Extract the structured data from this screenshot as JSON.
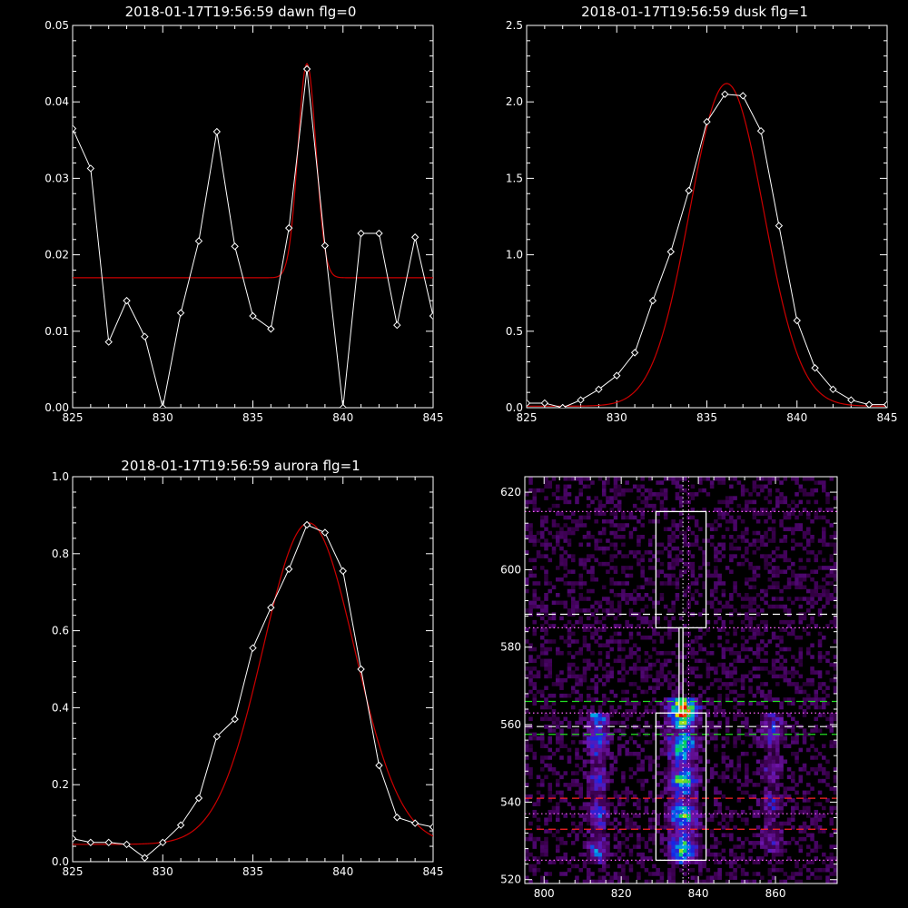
{
  "colors": {
    "background": "#000000",
    "axes": "#ffffff",
    "data_line": "#ffffff",
    "fit_line": "#cc0000"
  },
  "chart_data": [
    {
      "id": "dawn",
      "type": "line",
      "title": "2018-01-17T19:56:59 dawn flg=0",
      "xlim": [
        825,
        845
      ],
      "ylim": [
        0,
        0.05
      ],
      "xticks": [
        825,
        830,
        835,
        840,
        845
      ],
      "xticklabels": [
        "825",
        "830",
        "835",
        "840",
        "845"
      ],
      "yticks": [
        0,
        0.01,
        0.02,
        0.03,
        0.04,
        0.05
      ],
      "yticklabels": [
        "0.00",
        "0.01",
        "0.02",
        "0.03",
        "0.04",
        "0.05"
      ],
      "data": {
        "x": [
          825,
          826,
          827,
          828,
          829,
          830,
          831,
          832,
          833,
          834,
          835,
          836,
          837,
          838,
          839,
          840,
          841,
          842,
          843,
          844,
          845
        ],
        "y": [
          0.0365,
          0.0313,
          0.0086,
          0.014,
          0.0093,
          0.0,
          0.0124,
          0.0218,
          0.0361,
          0.0211,
          0.012,
          0.0103,
          0.0235,
          0.0443,
          0.0212,
          0.0,
          0.0228,
          0.0228,
          0.0108,
          0.0223,
          0.012
        ]
      },
      "fit": {
        "model": "gaussian+constant",
        "amplitude": 0.028,
        "center": 838.0,
        "sigma": 0.5,
        "offset": 0.017
      }
    },
    {
      "id": "dusk",
      "type": "line",
      "title": "2018-01-17T19:56:59 dusk flg=1",
      "xlim": [
        825,
        845
      ],
      "ylim": [
        0,
        2.5
      ],
      "xticks": [
        825,
        830,
        835,
        840,
        845
      ],
      "xticklabels": [
        "825",
        "830",
        "835",
        "840",
        "845"
      ],
      "yticks": [
        0,
        0.5,
        1.0,
        1.5,
        2.0,
        2.5
      ],
      "yticklabels": [
        "0.0",
        "0.5",
        "1.0",
        "1.5",
        "2.0",
        "2.5"
      ],
      "data": {
        "x": [
          825,
          826,
          827,
          828,
          829,
          830,
          831,
          832,
          833,
          834,
          835,
          836,
          837,
          838,
          839,
          840,
          841,
          842,
          843,
          844,
          845
        ],
        "y": [
          0.03,
          0.03,
          0.0,
          0.05,
          0.12,
          0.21,
          0.36,
          0.7,
          1.02,
          1.42,
          1.87,
          2.05,
          2.04,
          1.81,
          1.19,
          0.57,
          0.26,
          0.12,
          0.05,
          0.02,
          0.02
        ]
      },
      "fit": {
        "model": "gaussian+constant",
        "amplitude": 2.11,
        "center": 836.1,
        "sigma": 2.05,
        "offset": 0.01
      }
    },
    {
      "id": "aurora",
      "type": "line",
      "title": "2018-01-17T19:56:59 aurora flg=1",
      "xlim": [
        825,
        845
      ],
      "ylim": [
        0,
        1.0
      ],
      "xticks": [
        825,
        830,
        835,
        840,
        845
      ],
      "xticklabels": [
        "825",
        "830",
        "835",
        "840",
        "845"
      ],
      "yticks": [
        0,
        0.2,
        0.4,
        0.6,
        0.8,
        1.0
      ],
      "yticklabels": [
        "0.0",
        "0.2",
        "0.4",
        "0.6",
        "0.8",
        "1.0"
      ],
      "data": {
        "x": [
          825,
          826,
          827,
          828,
          829,
          830,
          831,
          832,
          833,
          834,
          835,
          836,
          837,
          838,
          839,
          840,
          841,
          842,
          843,
          844,
          845
        ],
        "y": [
          0.06,
          0.05,
          0.05,
          0.045,
          0.01,
          0.05,
          0.095,
          0.165,
          0.325,
          0.37,
          0.555,
          0.66,
          0.76,
          0.875,
          0.855,
          0.755,
          0.5,
          0.25,
          0.115,
          0.1,
          0.09
        ]
      },
      "fit": {
        "model": "gaussian+constant",
        "amplitude": 0.835,
        "center": 838.1,
        "sigma": 2.55,
        "offset": 0.045
      }
    },
    {
      "id": "image",
      "type": "heatmap",
      "xlim": [
        795,
        876
      ],
      "ylim": [
        519,
        624
      ],
      "xticks": [
        800,
        820,
        840,
        860
      ],
      "xticklabels": [
        "800",
        "820",
        "840",
        "860"
      ],
      "yticks": [
        520,
        540,
        560,
        580,
        600,
        620
      ],
      "yticklabels": [
        "520",
        "540",
        "560",
        "580",
        "600",
        "620"
      ],
      "colormap": "rainbow (black-purple-blue-green-yellow-red)",
      "emission_columns": [
        {
          "center_x": 814,
          "width": 6,
          "y_range": [
            525,
            562
          ],
          "peak": 0.55
        },
        {
          "center_x": 836,
          "width": 8,
          "y_range": [
            525,
            566
          ],
          "peak": 1.0
        },
        {
          "center_x": 859,
          "width": 7,
          "y_range": [
            528,
            562
          ],
          "peak": 0.35
        }
      ],
      "boxes": [
        {
          "x0": 829,
          "x1": 842,
          "y0": 525,
          "y1": 563
        },
        {
          "x0": 829,
          "x1": 842,
          "y0": 585,
          "y1": 615
        }
      ],
      "connector": {
        "x0": 835,
        "x1": 836,
        "y0": 563,
        "y1": 585
      },
      "vertical_lines": [
        {
          "x": 836,
          "style": "dotted",
          "color": "#ffffff"
        },
        {
          "x": 837.5,
          "style": "dotted",
          "color": "#ff66ff"
        }
      ],
      "horizontal_lines": [
        {
          "y": 615,
          "style": "dotted",
          "color": "#ff66ff"
        },
        {
          "y": 588.5,
          "style": "dashed",
          "color": "#ffffff"
        },
        {
          "y": 585,
          "style": "dotted",
          "color": "#ff66ff"
        },
        {
          "y": 566,
          "style": "dashed",
          "color": "#22dd22"
        },
        {
          "y": 563,
          "style": "dotted",
          "color": "#ff66ff"
        },
        {
          "y": 559.5,
          "style": "dashed",
          "color": "#ffffff"
        },
        {
          "y": 557.5,
          "style": "dashed",
          "color": "#22dd22"
        },
        {
          "y": 541,
          "style": "dashed",
          "color": "#ff2222"
        },
        {
          "y": 537,
          "style": "dotted",
          "color": "#ff66ff"
        },
        {
          "y": 533,
          "style": "dashed",
          "color": "#ff2222"
        },
        {
          "y": 525,
          "style": "dotted",
          "color": "#ff66ff"
        }
      ]
    }
  ]
}
